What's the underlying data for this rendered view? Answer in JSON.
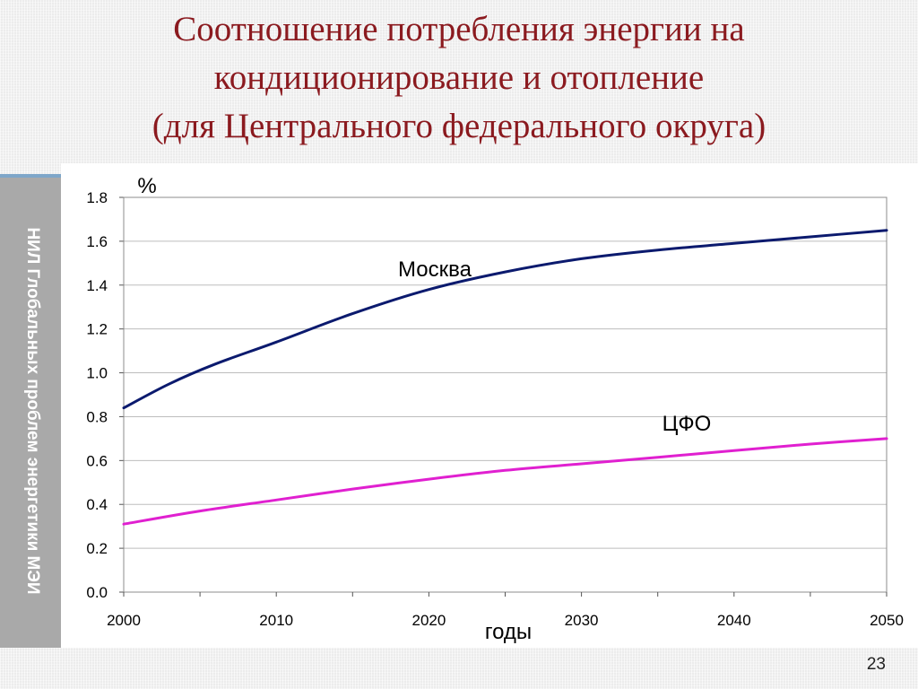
{
  "slide": {
    "title_lines": [
      "Соотношение потребления энергии на",
      "кондиционирование и отопление",
      "(для Центрального федерального округа)"
    ],
    "side_label": "НИЛ Глобальных проблем энергетики МЭИ",
    "page_number": "23"
  },
  "colors": {
    "title": "#8b1a1f",
    "moscow_line": "#0b1a6e",
    "cfo_line": "#e020d0",
    "sidebar": "#a9a9a9"
  },
  "chart_data": {
    "type": "line",
    "title": "",
    "ylabel": "%",
    "xlabel": "годы",
    "xlim": [
      2000,
      2050
    ],
    "ylim": [
      0,
      1.8
    ],
    "xticks": [
      "2000",
      "2010",
      "2020",
      "2030",
      "2040",
      "2050"
    ],
    "yticks": [
      "0.0",
      "0.2",
      "0.4",
      "0.6",
      "0.8",
      "1.0",
      "1.2",
      "1.4",
      "1.6",
      "1.8"
    ],
    "grid": "horizontal",
    "series": [
      {
        "name": "Москва",
        "color": "#0b1a6e",
        "x": [
          2000,
          2003,
          2006,
          2010,
          2015,
          2020,
          2025,
          2030,
          2035,
          2040,
          2045,
          2050
        ],
        "y": [
          0.84,
          0.95,
          1.04,
          1.14,
          1.27,
          1.38,
          1.46,
          1.52,
          1.56,
          1.59,
          1.62,
          1.65
        ]
      },
      {
        "name": "ЦФО",
        "color": "#e020d0",
        "x": [
          2000,
          2005,
          2010,
          2015,
          2020,
          2025,
          2030,
          2035,
          2040,
          2045,
          2050
        ],
        "y": [
          0.31,
          0.37,
          0.42,
          0.47,
          0.515,
          0.555,
          0.585,
          0.615,
          0.645,
          0.675,
          0.7
        ]
      }
    ]
  }
}
